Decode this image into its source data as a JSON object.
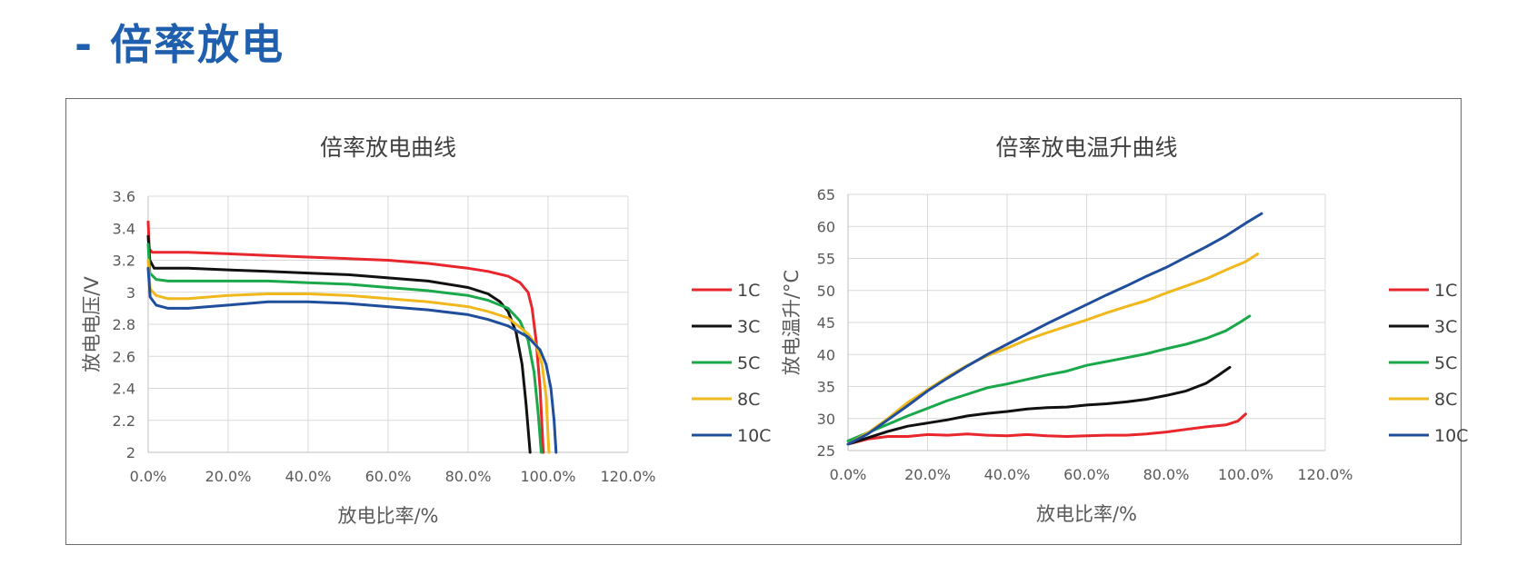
{
  "page": {
    "title": "- 倍率放电"
  },
  "chart_data": [
    {
      "type": "line",
      "title": "倍率放电曲线",
      "xlabel": "放电比率/%",
      "ylabel": "放电电压/V",
      "xlim": [
        0,
        120
      ],
      "ylim": [
        2,
        3.6
      ],
      "xticks": [
        0,
        20,
        40,
        60,
        80,
        100,
        120
      ],
      "xtick_labels": [
        "0.0%",
        "20.0%",
        "40.0%",
        "60.0%",
        "80.0%",
        "100.0%",
        "120.0%"
      ],
      "yticks": [
        2,
        2.2,
        2.4,
        2.6,
        2.8,
        3,
        3.2,
        3.4,
        3.6
      ],
      "ytick_labels": [
        "2",
        "2.2",
        "2.4",
        "2.6",
        "2.8",
        "3",
        "3.2",
        "3.4",
        "3.6"
      ],
      "grid": true,
      "legend_position": "right",
      "series": [
        {
          "name": "1C",
          "color": "#e8262b",
          "points": [
            [
              0,
              3.44
            ],
            [
              0.3,
              3.27
            ],
            [
              1,
              3.25
            ],
            [
              5,
              3.25
            ],
            [
              10,
              3.25
            ],
            [
              20,
              3.24
            ],
            [
              30,
              3.23
            ],
            [
              40,
              3.22
            ],
            [
              50,
              3.21
            ],
            [
              60,
              3.2
            ],
            [
              70,
              3.18
            ],
            [
              80,
              3.15
            ],
            [
              85,
              3.13
            ],
            [
              90,
              3.1
            ],
            [
              93,
              3.06
            ],
            [
              95,
              3.0
            ],
            [
              96,
              2.9
            ],
            [
              97,
              2.7
            ],
            [
              98,
              2.4
            ],
            [
              98.8,
              2.0
            ]
          ]
        },
        {
          "name": "3C",
          "color": "#111111",
          "points": [
            [
              0,
              3.35
            ],
            [
              0.4,
              3.2
            ],
            [
              1.5,
              3.15
            ],
            [
              5,
              3.15
            ],
            [
              10,
              3.15
            ],
            [
              20,
              3.14
            ],
            [
              30,
              3.13
            ],
            [
              40,
              3.12
            ],
            [
              50,
              3.11
            ],
            [
              60,
              3.09
            ],
            [
              70,
              3.07
            ],
            [
              80,
              3.03
            ],
            [
              85,
              2.99
            ],
            [
              88,
              2.94
            ],
            [
              90,
              2.88
            ],
            [
              92,
              2.75
            ],
            [
              93.5,
              2.55
            ],
            [
              94.5,
              2.3
            ],
            [
              95.5,
              2.0
            ]
          ]
        },
        {
          "name": "5C",
          "color": "#1aa84a",
          "points": [
            [
              0,
              3.3
            ],
            [
              0.4,
              3.12
            ],
            [
              2,
              3.08
            ],
            [
              5,
              3.07
            ],
            [
              10,
              3.07
            ],
            [
              20,
              3.07
            ],
            [
              30,
              3.07
            ],
            [
              40,
              3.06
            ],
            [
              50,
              3.05
            ],
            [
              60,
              3.03
            ],
            [
              70,
              3.01
            ],
            [
              80,
              2.98
            ],
            [
              85,
              2.95
            ],
            [
              90,
              2.9
            ],
            [
              93,
              2.82
            ],
            [
              95,
              2.7
            ],
            [
              96.5,
              2.5
            ],
            [
              97.5,
              2.25
            ],
            [
              98.3,
              2.0
            ]
          ]
        },
        {
          "name": "8C",
          "color": "#f0b81c",
          "points": [
            [
              0,
              3.2
            ],
            [
              0.5,
              3.02
            ],
            [
              2,
              2.98
            ],
            [
              5,
              2.96
            ],
            [
              10,
              2.96
            ],
            [
              20,
              2.98
            ],
            [
              30,
              2.99
            ],
            [
              40,
              2.99
            ],
            [
              50,
              2.98
            ],
            [
              60,
              2.96
            ],
            [
              70,
              2.94
            ],
            [
              80,
              2.91
            ],
            [
              85,
              2.88
            ],
            [
              90,
              2.84
            ],
            [
              95,
              2.74
            ],
            [
              97,
              2.67
            ],
            [
              98.5,
              2.55
            ],
            [
              99.5,
              2.35
            ],
            [
              100.2,
              2.0
            ]
          ]
        },
        {
          "name": "10C",
          "color": "#1f4e9c",
          "points": [
            [
              0,
              3.15
            ],
            [
              0.5,
              2.97
            ],
            [
              2,
              2.92
            ],
            [
              5,
              2.9
            ],
            [
              10,
              2.9
            ],
            [
              20,
              2.92
            ],
            [
              30,
              2.94
            ],
            [
              40,
              2.94
            ],
            [
              50,
              2.93
            ],
            [
              60,
              2.91
            ],
            [
              70,
              2.89
            ],
            [
              80,
              2.86
            ],
            [
              85,
              2.83
            ],
            [
              90,
              2.79
            ],
            [
              95,
              2.72
            ],
            [
              98,
              2.64
            ],
            [
              99.5,
              2.55
            ],
            [
              100.7,
              2.4
            ],
            [
              101.5,
              2.2
            ],
            [
              102,
              2.0
            ]
          ]
        }
      ]
    },
    {
      "type": "line",
      "title": "倍率放电温升曲线",
      "xlabel": "放电比率/%",
      "ylabel": "放电温升/°C",
      "xlim": [
        0,
        120
      ],
      "ylim": [
        25,
        65
      ],
      "xticks": [
        0,
        20,
        40,
        60,
        80,
        100,
        120
      ],
      "xtick_labels": [
        "0.0%",
        "20.0%",
        "40.0%",
        "60.0%",
        "80.0%",
        "100.0%",
        "120.0%"
      ],
      "yticks": [
        25,
        30,
        35,
        40,
        45,
        50,
        55,
        60,
        65
      ],
      "ytick_labels": [
        "25",
        "30",
        "35",
        "40",
        "45",
        "50",
        "55",
        "60",
        "65"
      ],
      "grid": true,
      "legend_position": "right",
      "series": [
        {
          "name": "1C",
          "color": "#e8262b",
          "points": [
            [
              0,
              26
            ],
            [
              5,
              26.8
            ],
            [
              10,
              27.2
            ],
            [
              15,
              27.2
            ],
            [
              20,
              27.5
            ],
            [
              25,
              27.4
            ],
            [
              30,
              27.6
            ],
            [
              35,
              27.4
            ],
            [
              40,
              27.3
            ],
            [
              45,
              27.5
            ],
            [
              50,
              27.3
            ],
            [
              55,
              27.2
            ],
            [
              60,
              27.3
            ],
            [
              65,
              27.4
            ],
            [
              70,
              27.4
            ],
            [
              75,
              27.6
            ],
            [
              80,
              27.9
            ],
            [
              85,
              28.3
            ],
            [
              90,
              28.7
            ],
            [
              95,
              29
            ],
            [
              98,
              29.6
            ],
            [
              100,
              30.7
            ]
          ]
        },
        {
          "name": "3C",
          "color": "#111111",
          "points": [
            [
              0,
              26
            ],
            [
              5,
              27
            ],
            [
              10,
              28
            ],
            [
              15,
              28.8
            ],
            [
              20,
              29.3
            ],
            [
              25,
              29.8
            ],
            [
              30,
              30.4
            ],
            [
              35,
              30.8
            ],
            [
              40,
              31.1
            ],
            [
              45,
              31.5
            ],
            [
              50,
              31.7
            ],
            [
              55,
              31.8
            ],
            [
              60,
              32.1
            ],
            [
              65,
              32.3
            ],
            [
              70,
              32.6
            ],
            [
              75,
              33.0
            ],
            [
              80,
              33.6
            ],
            [
              85,
              34.3
            ],
            [
              90,
              35.5
            ],
            [
              93,
              36.7
            ],
            [
              96,
              38
            ]
          ]
        },
        {
          "name": "5C",
          "color": "#1aa84a",
          "points": [
            [
              0,
              26.5
            ],
            [
              5,
              27.8
            ],
            [
              10,
              29.1
            ],
            [
              15,
              30.4
            ],
            [
              20,
              31.6
            ],
            [
              25,
              32.8
            ],
            [
              30,
              33.8
            ],
            [
              35,
              34.8
            ],
            [
              40,
              35.4
            ],
            [
              45,
              36.1
            ],
            [
              50,
              36.8
            ],
            [
              55,
              37.4
            ],
            [
              60,
              38.3
            ],
            [
              65,
              38.9
            ],
            [
              70,
              39.5
            ],
            [
              75,
              40.1
            ],
            [
              80,
              40.9
            ],
            [
              85,
              41.6
            ],
            [
              90,
              42.5
            ],
            [
              95,
              43.7
            ],
            [
              99,
              45.2
            ],
            [
              101,
              46
            ]
          ]
        },
        {
          "name": "8C",
          "color": "#f0b81c",
          "points": [
            [
              0,
              26
            ],
            [
              5,
              27.8
            ],
            [
              10,
              30
            ],
            [
              15,
              32.5
            ],
            [
              20,
              34.5
            ],
            [
              25,
              36.5
            ],
            [
              30,
              38.3
            ],
            [
              35,
              39.8
            ],
            [
              40,
              41
            ],
            [
              45,
              42.3
            ],
            [
              50,
              43.4
            ],
            [
              55,
              44.4
            ],
            [
              60,
              45.4
            ],
            [
              65,
              46.5
            ],
            [
              70,
              47.5
            ],
            [
              75,
              48.4
            ],
            [
              80,
              49.6
            ],
            [
              85,
              50.7
            ],
            [
              90,
              51.8
            ],
            [
              95,
              53.2
            ],
            [
              100,
              54.5
            ],
            [
              103,
              55.7
            ]
          ]
        },
        {
          "name": "10C",
          "color": "#1f4e9c",
          "points": [
            [
              0,
              26
            ],
            [
              5,
              27.6
            ],
            [
              10,
              29.8
            ],
            [
              15,
              32
            ],
            [
              20,
              34.3
            ],
            [
              25,
              36.3
            ],
            [
              30,
              38.2
            ],
            [
              35,
              40
            ],
            [
              40,
              41.6
            ],
            [
              45,
              43.2
            ],
            [
              50,
              44.8
            ],
            [
              55,
              46.3
            ],
            [
              60,
              47.8
            ],
            [
              65,
              49.3
            ],
            [
              70,
              50.7
            ],
            [
              75,
              52.2
            ],
            [
              80,
              53.6
            ],
            [
              85,
              55.2
            ],
            [
              90,
              56.8
            ],
            [
              95,
              58.5
            ],
            [
              100,
              60.5
            ],
            [
              104,
              62
            ]
          ]
        }
      ]
    }
  ]
}
